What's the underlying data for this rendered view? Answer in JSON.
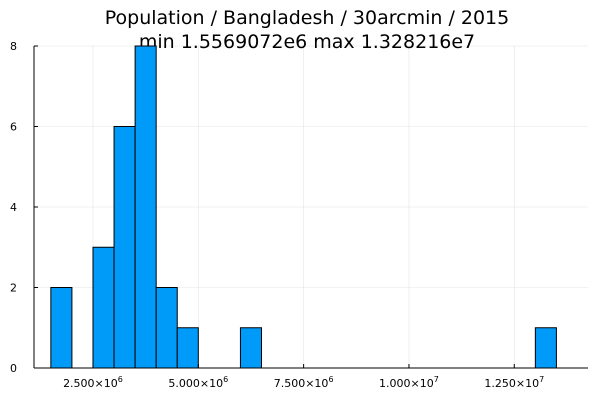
{
  "chart_data": {
    "type": "bar",
    "title": "Population / Bangladesh / 30arcmin / 2015",
    "subtitle": "min 1.5569072e6  max 1.328216e7",
    "xlabel": "",
    "ylabel": "",
    "bin_width": 500000,
    "bins": [
      {
        "start": 1500000,
        "end": 2000000,
        "count": 2
      },
      {
        "start": 2500000,
        "end": 3000000,
        "count": 3
      },
      {
        "start": 3000000,
        "end": 3500000,
        "count": 6
      },
      {
        "start": 3500000,
        "end": 4000000,
        "count": 8
      },
      {
        "start": 4000000,
        "end": 4500000,
        "count": 2
      },
      {
        "start": 4500000,
        "end": 5000000,
        "count": 1
      },
      {
        "start": 6000000,
        "end": 6500000,
        "count": 1
      },
      {
        "start": 13000000,
        "end": 13500000,
        "count": 1
      }
    ],
    "xlim": [
      1100000,
      14250000
    ],
    "ylim": [
      0,
      8
    ],
    "x_ticks": [
      {
        "value": 2500000,
        "mantissa": "2.500×10",
        "exp": "6"
      },
      {
        "value": 5000000,
        "mantissa": "5.000×10",
        "exp": "6"
      },
      {
        "value": 7500000,
        "mantissa": "7.500×10",
        "exp": "6"
      },
      {
        "value": 10000000,
        "mantissa": "1.000×10",
        "exp": "7"
      },
      {
        "value": 12500000,
        "mantissa": "1.250×10",
        "exp": "7"
      }
    ],
    "y_ticks": [
      0,
      2,
      4,
      6,
      8
    ],
    "grid": true,
    "legend": "none",
    "bar_color": "#009AF9",
    "bar_edge_color": "#000000"
  }
}
